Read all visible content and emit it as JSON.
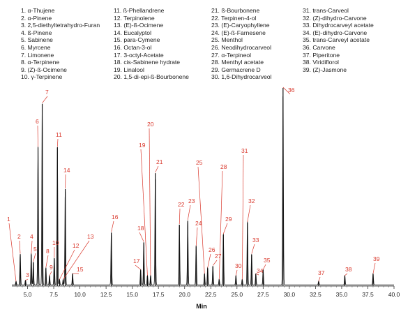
{
  "chart_data": {
    "type": "line",
    "xlabel": "Min",
    "xlim": [
      3.5,
      40.0
    ],
    "xticks": [
      "5.0",
      "7.5",
      "10.0",
      "12.5",
      "15.0",
      "17.5",
      "20.0",
      "22.5",
      "25.0",
      "27.5",
      "30.0",
      "32.5",
      "35.0",
      "37.5",
      "40.0"
    ],
    "legend": [
      "1. α-Thujene",
      "2. α-Pinene",
      "3. 2,5-diethyltetrahydro-Furan",
      "4. ß-Pinene",
      "5. Sabinene",
      "6. Myrcene",
      "7. Limonene",
      "8. α-Terpinene",
      "9. (Z)-ß-Ocimene",
      "10. γ-Terpinene",
      "11. ß-Phellandrene",
      "12. Terpinolene",
      "13. (E)-ß-Ocimene",
      "14. Eucalyptol",
      "15. para-Cymene",
      "16. Octan-3-ol",
      "17. 3-octyl-Acetate",
      "18. cis-Sabinene hydrate",
      "19. Linalool",
      "20. 1,5-di-epi-ß-Bourbonene",
      "21. ß-Bourbonene",
      "22. Terpinen-4-ol",
      "23. (E)-Caryophyllene",
      "24. (E)-ß-Farnesene",
      "25. Menthol",
      "26. Neodihydrocarveol",
      "27. α-Terpineol",
      "28. Menthyl acetate",
      "29. Germacrene D",
      "30. 1,6-Dihydrocarveol",
      "31. trans-Carveol",
      "32. (Z)-dihydro-Carvone",
      "33. Dihydrocarveyl acetate",
      "34. (E)-dihydro-Carvone",
      "35. trans-Carveyl acetate",
      "36. Carvone",
      "37. Piperitone",
      "38. Viridiflorol",
      "39. (Z)-Jasmone"
    ],
    "peaks": [
      {
        "label": "1",
        "rt": 3.9,
        "height": 0.02
      },
      {
        "label": "2",
        "rt": 4.3,
        "height": 0.16
      },
      {
        "label": "3",
        "rt": 4.8,
        "height": 0.025
      },
      {
        "label": "4",
        "rt": 5.35,
        "height": 0.16
      },
      {
        "label": "5",
        "rt": 5.55,
        "height": 0.12
      },
      {
        "label": "6",
        "rt": 6.0,
        "height": 0.7
      },
      {
        "label": "7",
        "rt": 6.4,
        "height": 0.92
      },
      {
        "label": "8",
        "rt": 6.75,
        "height": 0.09
      },
      {
        "label": "9",
        "rt": 7.1,
        "height": 0.05
      },
      {
        "label": "10",
        "rt": 7.55,
        "height": 0.14
      },
      {
        "label": "11",
        "rt": 7.85,
        "height": 0.7
      },
      {
        "label": "12",
        "rt": 8.05,
        "height": 0.03
      },
      {
        "label": "13",
        "rt": 8.4,
        "height": 0.03
      },
      {
        "label": "14",
        "rt": 8.6,
        "height": 0.49
      },
      {
        "label": "15",
        "rt": 9.3,
        "height": 0.06
      },
      {
        "label": "16",
        "rt": 13.0,
        "height": 0.27
      },
      {
        "label": "17",
        "rt": 15.8,
        "height": 0.08
      },
      {
        "label": "18",
        "rt": 16.1,
        "height": 0.22
      },
      {
        "label": "19",
        "rt": 16.45,
        "height": 0.05
      },
      {
        "label": "20",
        "rt": 16.75,
        "height": 0.05
      },
      {
        "label": "21",
        "rt": 17.2,
        "height": 0.57
      },
      {
        "label": "22",
        "rt": 19.5,
        "height": 0.31
      },
      {
        "label": "23",
        "rt": 20.3,
        "height": 0.33
      },
      {
        "label": "24",
        "rt": 21.1,
        "height": 0.2
      },
      {
        "label": "25",
        "rt": 21.9,
        "height": 0.06
      },
      {
        "label": "26",
        "rt": 22.2,
        "height": 0.09
      },
      {
        "label": "27",
        "rt": 22.7,
        "height": 0.1
      },
      {
        "label": "28",
        "rt": 23.3,
        "height": 0.03
      },
      {
        "label": "29",
        "rt": 23.7,
        "height": 0.26
      },
      {
        "label": "30",
        "rt": 24.9,
        "height": 0.05
      },
      {
        "label": "31",
        "rt": 25.5,
        "height": 0.03
      },
      {
        "label": "32",
        "rt": 26.0,
        "height": 0.32
      },
      {
        "label": "33",
        "rt": 26.4,
        "height": 0.16
      },
      {
        "label": "34",
        "rt": 26.8,
        "height": 0.06
      },
      {
        "label": "35",
        "rt": 27.5,
        "height": 0.08
      },
      {
        "label": "36",
        "rt": 29.4,
        "height": 1.0
      },
      {
        "label": "37",
        "rt": 32.8,
        "height": 0.02
      },
      {
        "label": "38",
        "rt": 35.3,
        "height": 0.05
      },
      {
        "label": "39",
        "rt": 38.0,
        "height": 0.06
      }
    ],
    "grid": false
  }
}
